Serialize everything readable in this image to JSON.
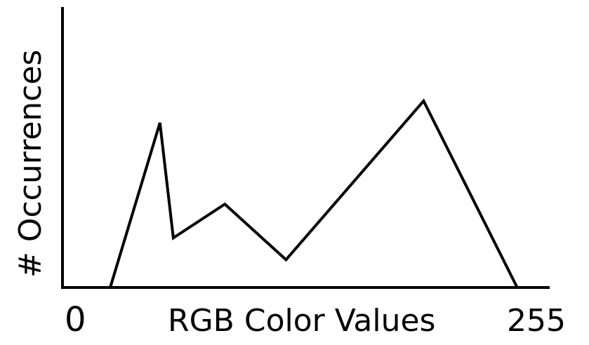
{
  "chart_data": {
    "type": "line",
    "title": "",
    "xlabel": "RGB Color Values",
    "ylabel": "# Occurrences",
    "x_tick_labels": [
      "0",
      "255"
    ],
    "xlim": [
      0,
      255
    ],
    "ylim": [
      0,
      100
    ],
    "grid": false,
    "legend": "none",
    "series": [
      {
        "x": [
          25,
          51,
          58,
          85,
          117,
          189,
          238
        ],
        "y": [
          0,
          83,
          25,
          42,
          14,
          94,
          0
        ]
      }
    ],
    "colors": {
      "line": "#000000",
      "axes": "#000000",
      "background": "#ffffff"
    }
  }
}
